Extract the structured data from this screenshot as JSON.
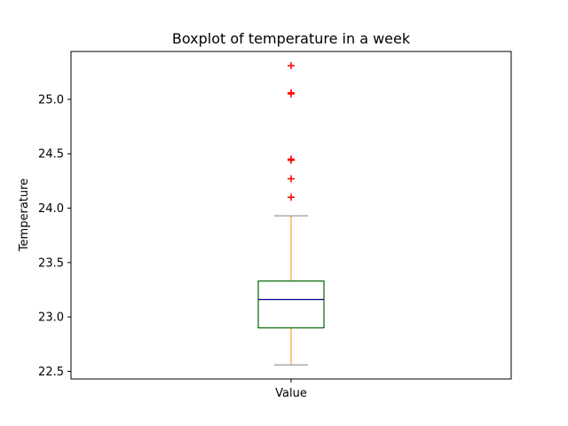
{
  "chart_data": {
    "type": "boxplot",
    "title": "Boxplot of temperature in a week",
    "xlabel": "",
    "ylabel": "Temperature",
    "categories": [
      "Value"
    ],
    "ylim": [
      22.43,
      25.44
    ],
    "yticks": [
      22.5,
      23.0,
      23.5,
      24.0,
      24.5,
      25.0
    ],
    "ytick_labels": [
      "22.5",
      "23.0",
      "23.5",
      "24.0",
      "24.5",
      "25.0"
    ],
    "grid": false,
    "legend": "none",
    "box": {
      "whisker_low": 22.56,
      "q1": 22.9,
      "median": 23.16,
      "q3": 23.33,
      "whisker_high": 23.93
    },
    "outliers": [
      24.1,
      24.27,
      24.44,
      24.45,
      25.05,
      25.06,
      25.31
    ],
    "colors": {
      "box": "#006400",
      "median": "#00008b",
      "whisker": "#ff8c00",
      "cap": "#808080",
      "outlier": "#ff0000"
    }
  }
}
